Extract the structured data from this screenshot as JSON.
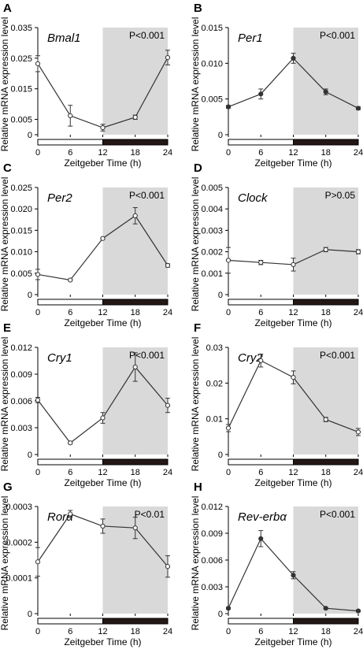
{
  "figure": {
    "y_axis_label": "Relative mRNA expression level",
    "x_axis_label": "Zeitgeber Time (h)",
    "x_ticks": [
      "0",
      "6",
      "12",
      "18",
      "24"
    ],
    "colors": {
      "dark_phase_shading": "#d9d9d9",
      "line": "#333333",
      "marker_fill": "#ffffff",
      "light_bar": "#ffffff",
      "dark_bar": "#231815"
    }
  },
  "chart_data": [
    {
      "panel": "A",
      "gene": "Bmal1",
      "pvalue": "P<0.001",
      "type": "line",
      "x": [
        0,
        6,
        12,
        18,
        24
      ],
      "values": [
        0.0232,
        0.0062,
        0.0023,
        0.0057,
        0.0252
      ],
      "errors": [
        0.0026,
        0.0034,
        0.0011,
        0.0007,
        0.0024
      ],
      "marker": "open",
      "ylim": [
        0,
        0.035
      ],
      "yticks": [
        "0",
        "0.005",
        "0.015",
        "0.025",
        "0.035"
      ],
      "ytick_values": [
        0,
        0.005,
        0.015,
        0.025,
        0.035
      ]
    },
    {
      "panel": "B",
      "gene": "Per1",
      "pvalue": "P<0.001",
      "type": "line",
      "x": [
        0,
        6,
        12,
        18,
        24
      ],
      "values": [
        0.0039,
        0.0057,
        0.0107,
        0.006,
        0.0037
      ],
      "errors": [
        0.0002,
        0.0007,
        0.0007,
        0.0004,
        0.0002
      ],
      "marker": "closed",
      "ylim": [
        0,
        0.015
      ],
      "yticks": [
        "0",
        "0.005",
        "0.010",
        "0.015"
      ],
      "ytick_values": [
        0,
        0.005,
        0.01,
        0.015
      ]
    },
    {
      "panel": "C",
      "gene": "Per2",
      "pvalue": "P<0.001",
      "type": "line",
      "x": [
        0,
        6,
        12,
        18,
        24
      ],
      "values": [
        0.0047,
        0.0034,
        0.0131,
        0.0184,
        0.0068
      ],
      "errors": [
        0.0012,
        0.0002,
        0.0002,
        0.0019,
        0.0004
      ],
      "marker": "open",
      "ylim": [
        0,
        0.025
      ],
      "yticks": [
        "0",
        "0.005",
        "0.010",
        "0.015",
        "0.020",
        "0.025"
      ],
      "ytick_values": [
        0,
        0.005,
        0.01,
        0.015,
        0.02,
        0.025
      ]
    },
    {
      "panel": "D",
      "gene": "Clock",
      "pvalue": "P>0.05",
      "type": "line",
      "x": [
        0,
        6,
        12,
        18,
        24
      ],
      "values": [
        0.0016,
        0.0015,
        0.0014,
        0.0021,
        0.002
      ],
      "errors": [
        0.0006,
        0.0001,
        0.0003,
        0.0001,
        0.0001
      ],
      "marker": "open",
      "ylim": [
        0,
        0.005
      ],
      "yticks": [
        "0",
        "0.001",
        "0.002",
        "0.003",
        "0.004",
        "0.005"
      ],
      "ytick_values": [
        0,
        0.001,
        0.002,
        0.003,
        0.004,
        0.005
      ]
    },
    {
      "panel": "E",
      "gene": "Cry1",
      "pvalue": "P<0.001",
      "type": "line",
      "x": [
        0,
        6,
        12,
        18,
        24
      ],
      "values": [
        0.0061,
        0.0013,
        0.0041,
        0.0098,
        0.0055
      ],
      "errors": [
        0.0003,
        0.0001,
        0.0006,
        0.0016,
        0.0008
      ],
      "marker": "open",
      "ylim": [
        0,
        0.012
      ],
      "yticks": [
        "0",
        "0.003",
        "0.006",
        "0.009",
        "0.012"
      ],
      "ytick_values": [
        0,
        0.003,
        0.006,
        0.009,
        0.012
      ]
    },
    {
      "panel": "F",
      "gene": "Cry2",
      "pvalue": "P<0.001",
      "type": "line",
      "x": [
        0,
        6,
        12,
        18,
        24
      ],
      "values": [
        0.0074,
        0.0263,
        0.0216,
        0.0098,
        0.0063
      ],
      "errors": [
        0.001,
        0.0018,
        0.0018,
        0.0006,
        0.001
      ],
      "marker": "open",
      "ylim": [
        0,
        0.03
      ],
      "yticks": [
        "0",
        "0.01",
        "0.02",
        "0.03"
      ],
      "ytick_values": [
        0,
        0.01,
        0.02,
        0.03
      ]
    },
    {
      "panel": "G",
      "gene": "Rorα",
      "pvalue": "P<0.01",
      "type": "line",
      "x": [
        0,
        6,
        12,
        18,
        24
      ],
      "values": [
        0.000145,
        0.000279,
        0.000245,
        0.00024,
        0.000132
      ],
      "errors": [
        4e-05,
        1e-05,
        2e-05,
        3e-05,
        3e-05
      ],
      "marker": "open",
      "ylim": [
        0,
        0.0003
      ],
      "yticks": [
        "0",
        "0.0001",
        "0.0002",
        "0.0003"
      ],
      "ytick_values": [
        0,
        0.0001,
        0.0002,
        0.0003
      ]
    },
    {
      "panel": "H",
      "gene": "Rev-erbα",
      "pvalue": "P<0.001",
      "type": "line",
      "x": [
        0,
        6,
        12,
        18,
        24
      ],
      "values": [
        0.0006,
        0.0084,
        0.0043,
        0.0006,
        0.0003
      ],
      "errors": [
        0.0001,
        0.0009,
        0.0004,
        0.0001,
        0.0001
      ],
      "marker": "closed",
      "ylim": [
        0,
        0.012
      ],
      "yticks": [
        "0",
        "0.003",
        "0.006",
        "0.009",
        "0.012"
      ],
      "ytick_values": [
        0,
        0.003,
        0.006,
        0.009,
        0.012
      ]
    }
  ]
}
